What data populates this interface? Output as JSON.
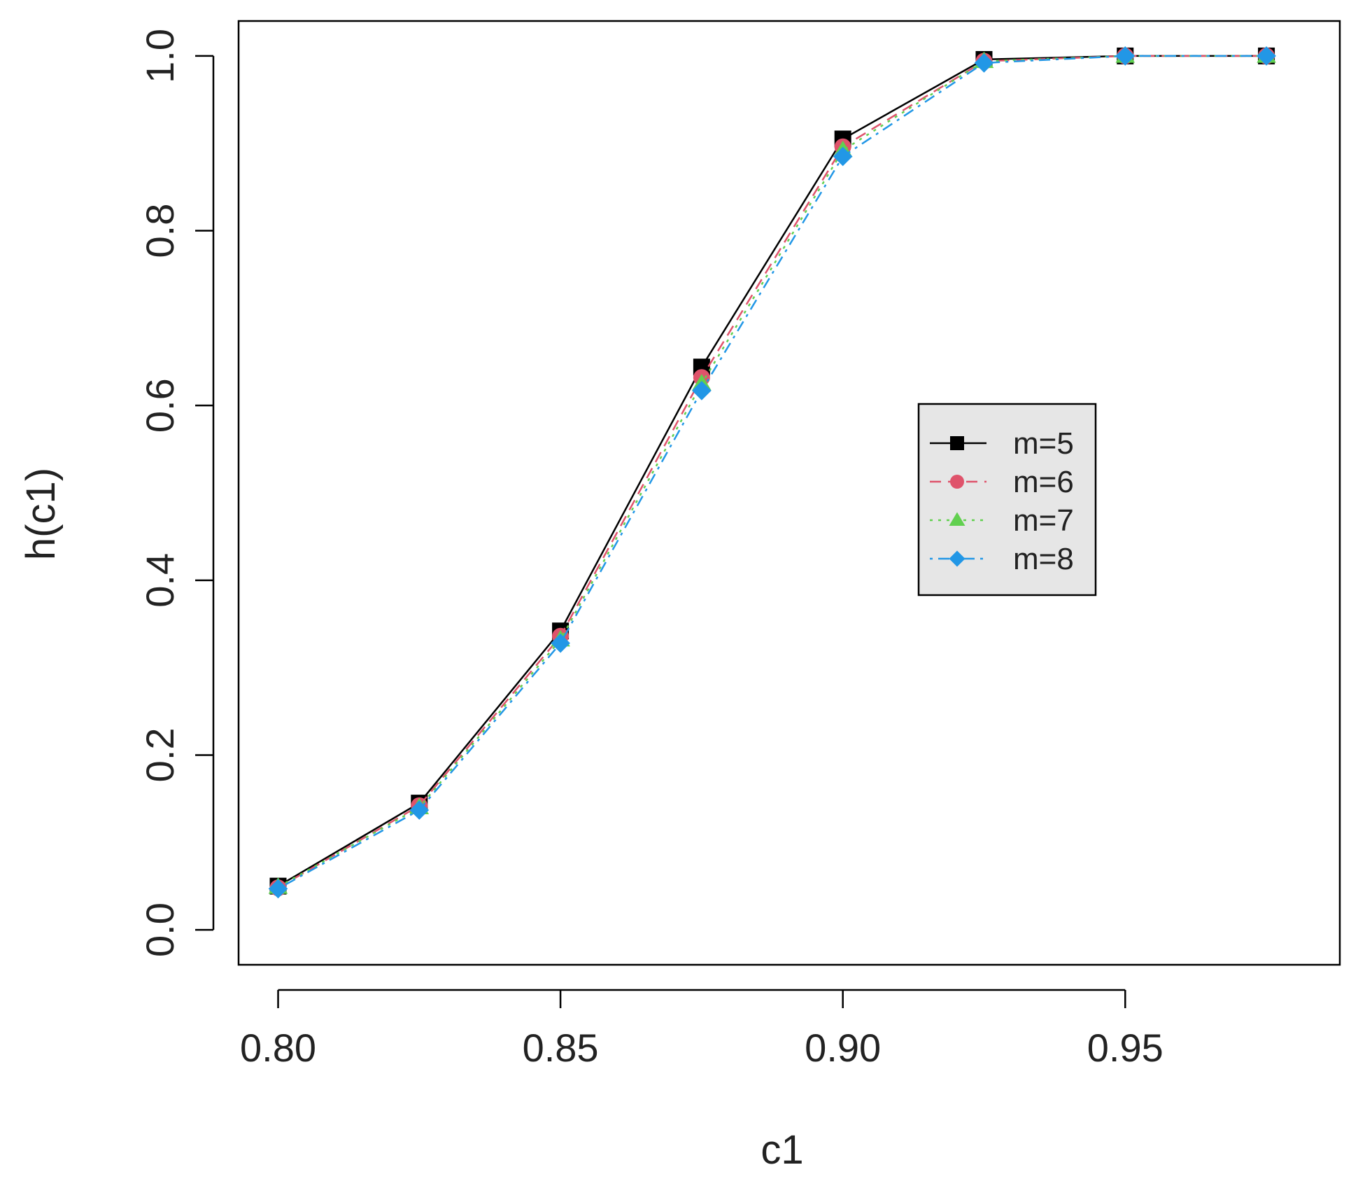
{
  "chart_data": {
    "type": "line",
    "title": "",
    "xlabel": "c1",
    "ylabel": "h(c1)",
    "x": [
      0.8,
      0.825,
      0.85,
      0.875,
      0.9,
      0.925,
      0.95,
      0.975
    ],
    "xlim": [
      0.793,
      0.988
    ],
    "ylim": [
      -0.04,
      1.04
    ],
    "xticks": [
      0.8,
      0.85,
      0.9,
      0.95
    ],
    "xtick_labels": [
      "0.80",
      "0.85",
      "0.90",
      "0.95"
    ],
    "yticks": [
      0.0,
      0.2,
      0.4,
      0.6,
      0.8,
      1.0
    ],
    "ytick_labels": [
      "0.0",
      "0.2",
      "0.4",
      "0.6",
      "0.8",
      "1.0"
    ],
    "grid": false,
    "legend_position": "right-center",
    "series": [
      {
        "name": "m=5",
        "color": "#000000",
        "line_style": "solid",
        "marker": "square",
        "values": [
          0.05,
          0.145,
          0.342,
          0.644,
          0.905,
          0.996,
          1.0,
          1.0
        ]
      },
      {
        "name": "m=6",
        "color": "#DF536B",
        "line_style": "dashed",
        "marker": "circle",
        "values": [
          0.048,
          0.142,
          0.336,
          0.632,
          0.896,
          0.994,
          1.0,
          1.0
        ]
      },
      {
        "name": "m=7",
        "color": "#61D04F",
        "line_style": "dotted",
        "marker": "triangle",
        "values": [
          0.049,
          0.14,
          0.332,
          0.625,
          0.892,
          0.994,
          1.0,
          1.0
        ]
      },
      {
        "name": "m=8",
        "color": "#2297E6",
        "line_style": "dotdash",
        "marker": "diamond",
        "values": [
          0.047,
          0.137,
          0.328,
          0.617,
          0.885,
          0.992,
          1.0,
          1.0
        ]
      }
    ]
  }
}
